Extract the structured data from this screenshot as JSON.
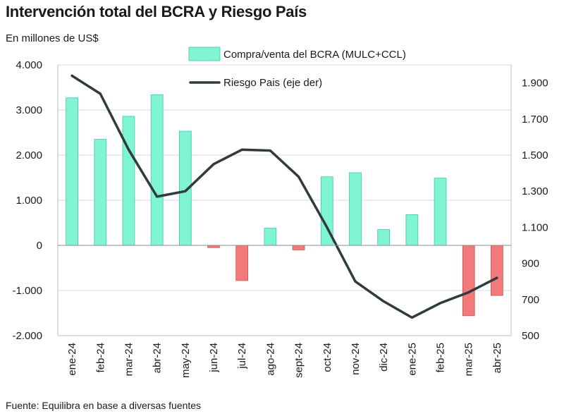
{
  "title": "Intervención total del BCRA y Riesgo País",
  "subtitle": "En millones de US$",
  "source": "Fuente: Equilibra en base a diversas fuentes",
  "colors": {
    "bar_positive": "#7ff5d4",
    "bar_positive_stroke": "#3fc7a3",
    "bar_negative": "#f27a7a",
    "bar_negative_stroke": "#c94f4f",
    "line": "#2f3b3c",
    "grid": "#d9d9d9"
  },
  "chart_data": {
    "type": "bar",
    "categories": [
      "ene-24",
      "feb-24",
      "mar-24",
      "abr-24",
      "may-24",
      "jun-24",
      "jul-24",
      "ago-24",
      "sept-24",
      "oct-24",
      "nov-24",
      "dic-24",
      "ene-25",
      "feb-25",
      "mar-25",
      "abr-25"
    ],
    "series": [
      {
        "name": "Compra/venta del BCRA (MULC+CCL)",
        "type": "bar",
        "axis": "left",
        "values": [
          3270,
          2350,
          2860,
          3340,
          2530,
          -50,
          -780,
          380,
          -100,
          1520,
          1610,
          350,
          680,
          1490,
          -1560,
          -1110
        ]
      },
      {
        "name": "Riesgo Pais (eje der)",
        "type": "line",
        "axis": "right",
        "values": [
          1940,
          1840,
          1530,
          1270,
          1300,
          1450,
          1530,
          1525,
          1380,
          1100,
          800,
          690,
          600,
          680,
          740,
          820
        ]
      }
    ],
    "yticks_left": [
      "4.000",
      "3.000",
      "2.000",
      "1.000",
      "0",
      "-1.000",
      "-2.000"
    ],
    "ylim_left": [
      -2000,
      4000
    ],
    "yticks_right": [
      "1.900",
      "1.700",
      "1.500",
      "1.300",
      "1.100",
      "900",
      "700",
      "500"
    ],
    "ylim_right": [
      500,
      2000
    ],
    "legend_placement": "top-center",
    "grid": true
  }
}
